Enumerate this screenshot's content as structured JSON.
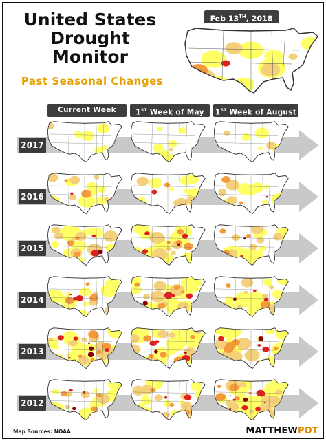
{
  "header": {
    "title_lines": [
      "United States",
      "Drought",
      "Monitor"
    ],
    "subtitle": "Past Seasonal Changes",
    "date_main": "Feb 13",
    "date_sup": "TH",
    "date_year": ", 2018"
  },
  "columns": [
    {
      "label": "Current Week",
      "sup": "",
      "tail": ""
    },
    {
      "label": "1",
      "sup": "ST",
      "tail": " Week of May"
    },
    {
      "label": "1",
      "sup": "ST",
      "tail": " Week of August"
    }
  ],
  "years": [
    "2017",
    "2016",
    "2015",
    "2014",
    "2013",
    "2012"
  ],
  "footer": {
    "sources": "Map Sources: NOAA",
    "brand_a": "MATTHEW",
    "brand_b": "POT"
  },
  "colors": {
    "abnormal": "#ffff66",
    "moderate": "#f5d07a",
    "severe": "#f59a3a",
    "extreme": "#e02020",
    "exceptional": "#8b0000",
    "arrow": "#c9c9c9",
    "header_bg": "#3d3d3d",
    "subtitle": "#e6a000"
  },
  "maps": [
    {
      "year": "2017",
      "col": 0,
      "level": 0.08
    },
    {
      "year": "2017",
      "col": 1,
      "level": 0.1
    },
    {
      "year": "2017",
      "col": 2,
      "level": 0.15
    },
    {
      "year": "2016",
      "col": 0,
      "level": 0.4
    },
    {
      "year": "2016",
      "col": 1,
      "level": 0.35
    },
    {
      "year": "2016",
      "col": 2,
      "level": 0.4
    },
    {
      "year": "2015",
      "col": 0,
      "level": 0.55
    },
    {
      "year": "2015",
      "col": 1,
      "level": 0.6
    },
    {
      "year": "2015",
      "col": 2,
      "level": 0.55
    },
    {
      "year": "2014",
      "col": 0,
      "level": 0.5
    },
    {
      "year": "2014",
      "col": 1,
      "level": 0.6
    },
    {
      "year": "2014",
      "col": 2,
      "level": 0.55
    },
    {
      "year": "2013",
      "col": 0,
      "level": 0.75
    },
    {
      "year": "2013",
      "col": 1,
      "level": 0.7
    },
    {
      "year": "2013",
      "col": 2,
      "level": 0.6
    },
    {
      "year": "2012",
      "col": 0,
      "level": 0.5
    },
    {
      "year": "2012",
      "col": 1,
      "level": 0.55
    },
    {
      "year": "2012",
      "col": 2,
      "level": 0.85
    }
  ]
}
